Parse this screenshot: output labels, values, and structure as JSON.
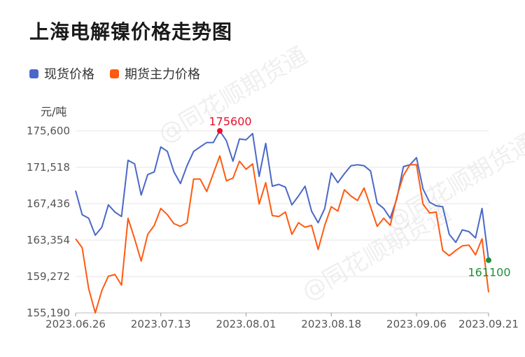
{
  "title": "上海电解镍价格走势图",
  "unit": "元/吨",
  "legend": [
    {
      "name": "现货价格",
      "color": "#4a68c7"
    },
    {
      "name": "期货主力价格",
      "color": "#ff5a10"
    }
  ],
  "watermark": "@同花顺期货通",
  "chart_data": {
    "type": "line",
    "title": "上海电解镍价格走势图",
    "ylabel": "元/吨",
    "ylim": [
      155190,
      175600
    ],
    "yticks": [
      175600,
      171518,
      167436,
      163354,
      159272,
      155190
    ],
    "ytick_labels": [
      "175,600",
      "171,518",
      "167,436",
      "163,354",
      "159,272",
      "155,190"
    ],
    "x_labels": [
      {
        "label": "2023.06.26",
        "index": 0
      },
      {
        "label": "2023.07.13",
        "index": 13
      },
      {
        "label": "2023.08.01",
        "index": 26
      },
      {
        "label": "2023.08.18",
        "index": 39
      },
      {
        "label": "2023.09.06",
        "index": 52
      },
      {
        "label": "2023.09.21",
        "index": 63
      }
    ],
    "grid": true,
    "legend_position": "top-left",
    "series": [
      {
        "name": "现货价格",
        "color": "#4a68c7",
        "values": [
          168900,
          166200,
          165800,
          163900,
          164800,
          167300,
          166500,
          166000,
          172300,
          171900,
          168400,
          170700,
          171000,
          173800,
          173300,
          171000,
          169700,
          171700,
          173300,
          173800,
          174300,
          174300,
          175600,
          174500,
          172200,
          174700,
          174600,
          175300,
          170500,
          174200,
          169400,
          169600,
          169300,
          167300,
          168300,
          169400,
          166600,
          165300,
          166900,
          170900,
          169800,
          170800,
          171700,
          171800,
          171700,
          171100,
          167500,
          166900,
          165800,
          168000,
          171600,
          171800,
          172600,
          169100,
          167600,
          167200,
          167100,
          164000,
          163100,
          164500,
          164300,
          163600,
          166900,
          161100
        ]
      },
      {
        "name": "期货主力价格",
        "color": "#ff5a10",
        "values": [
          163500,
          162500,
          157900,
          155190,
          157700,
          159300,
          159500,
          158300,
          165800,
          163500,
          161000,
          164000,
          165000,
          166900,
          166200,
          165200,
          164900,
          165300,
          170200,
          170200,
          168800,
          170800,
          172800,
          170000,
          170300,
          172200,
          171300,
          171900,
          167400,
          169800,
          166100,
          166000,
          166500,
          164000,
          165300,
          164800,
          165000,
          162300,
          165000,
          167100,
          166600,
          169000,
          168300,
          167800,
          169200,
          167100,
          164900,
          165800,
          165000,
          168200,
          170600,
          171800,
          171800,
          167400,
          166400,
          166500,
          162200,
          161600,
          162200,
          162700,
          162800,
          161700,
          163500,
          157500
        ]
      }
    ],
    "annotations": [
      {
        "label": "175600",
        "series": 0,
        "index": 22,
        "color": "#e8112d",
        "position": "above"
      },
      {
        "label": "161100",
        "series": 0,
        "index": 63,
        "color": "#1f8f3a",
        "position": "below"
      }
    ]
  }
}
